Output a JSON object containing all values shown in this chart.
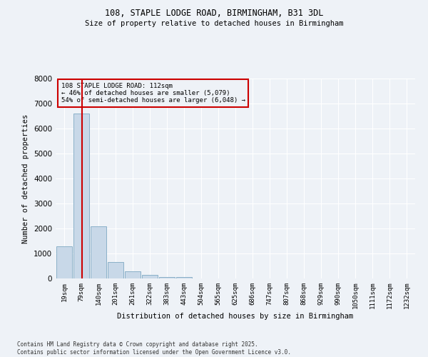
{
  "title1": "108, STAPLE LODGE ROAD, BIRMINGHAM, B31 3DL",
  "title2": "Size of property relative to detached houses in Birmingham",
  "xlabel": "Distribution of detached houses by size in Birmingham",
  "ylabel": "Number of detached properties",
  "annotation_line1": "108 STAPLE LODGE ROAD: 112sqm",
  "annotation_line2": "← 46% of detached houses are smaller (5,079)",
  "annotation_line3": "54% of semi-detached houses are larger (6,048) →",
  "bin_labels": [
    "19sqm",
    "79sqm",
    "140sqm",
    "201sqm",
    "261sqm",
    "322sqm",
    "383sqm",
    "443sqm",
    "504sqm",
    "565sqm",
    "625sqm",
    "686sqm",
    "747sqm",
    "807sqm",
    "868sqm",
    "929sqm",
    "990sqm",
    "1050sqm",
    "1111sqm",
    "1172sqm",
    "1232sqm"
  ],
  "bar_values": [
    1300,
    6600,
    2100,
    670,
    300,
    130,
    70,
    50,
    0,
    0,
    0,
    0,
    0,
    0,
    0,
    0,
    0,
    0,
    0,
    0,
    0
  ],
  "bar_color": "#c8d8e8",
  "bar_edge_color": "#8ab0c8",
  "vline_color": "#cc0000",
  "ylim": [
    0,
    8000
  ],
  "yticks": [
    0,
    1000,
    2000,
    3000,
    4000,
    5000,
    6000,
    7000,
    8000
  ],
  "background_color": "#eef2f7",
  "grid_color": "#ffffff",
  "footer_line1": "Contains HM Land Registry data © Crown copyright and database right 2025.",
  "footer_line2": "Contains public sector information licensed under the Open Government Licence v3.0."
}
